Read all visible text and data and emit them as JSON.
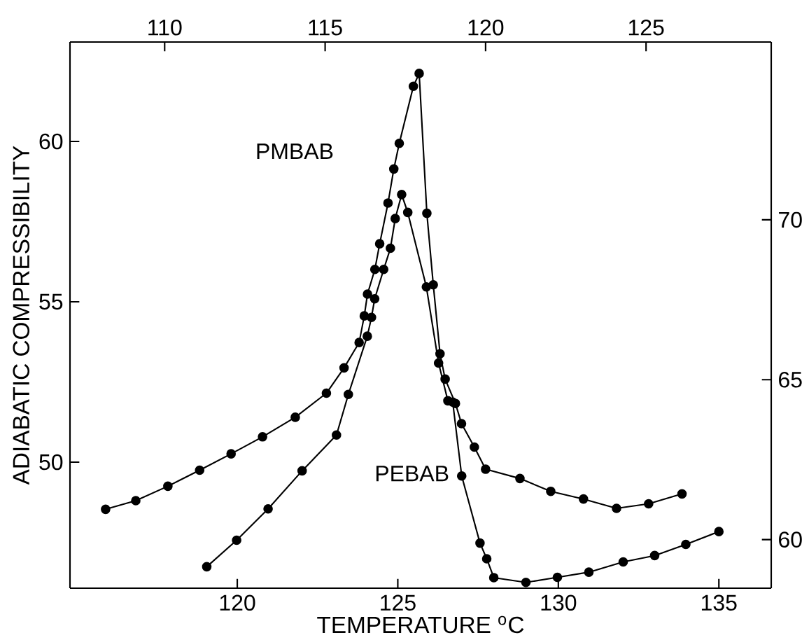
{
  "chart_data": {
    "type": "line",
    "xlabel": "TEMPERATURE $^{o}$C",
    "ylabel": "ADIABATIC COMPRESSIBILITY",
    "xlim": [
      114.79,
      136.63
    ],
    "xticks": [
      120,
      125,
      130,
      135
    ],
    "x2lim": [
      107.05,
      128.9
    ],
    "x2ticks": [
      110,
      115,
      120,
      125
    ],
    "ylim": [
      46.07,
      63.1
    ],
    "yticks": [
      50,
      55,
      60
    ],
    "y2lim": [
      58.48,
      75.56
    ],
    "y2ticks": [
      60,
      65,
      70
    ],
    "marker": "circle",
    "series": [
      {
        "name": "PMBAB",
        "axis": "x2",
        "color": "#000000",
        "x": [
          108.16,
          109.1,
          110.1,
          111.09,
          112.07,
          113.05,
          114.07,
          115.04,
          115.59,
          116.06,
          116.22,
          116.32,
          116.55,
          116.7,
          116.96,
          117.14,
          117.31,
          117.75,
          117.93,
          118.17,
          118.37,
          118.58,
          118.74,
          119.06,
          119.25,
          119.65,
          120.0,
          121.07,
          122.03,
          123.05,
          124.08,
          125.08,
          126.12
        ],
        "values": [
          48.53,
          48.8,
          49.25,
          49.75,
          50.26,
          50.79,
          51.4,
          52.15,
          52.94,
          53.73,
          54.56,
          55.24,
          56.01,
          56.81,
          58.08,
          59.14,
          59.94,
          61.72,
          62.12,
          57.76,
          55.53,
          53.38,
          52.59,
          51.83,
          51.2,
          50.47,
          49.78,
          49.49,
          49.09,
          48.85,
          48.56,
          48.7,
          49.01
        ]
      },
      {
        "name": "PEBAB",
        "axis": "y2",
        "color": "#000000",
        "x": [
          119.05,
          119.98,
          120.96,
          122.02,
          123.09,
          123.46,
          124.05,
          124.18,
          124.28,
          124.56,
          124.77,
          124.92,
          125.12,
          125.31,
          125.89,
          126.27,
          126.56,
          126.71,
          126.99,
          127.56,
          127.77,
          127.99,
          128.99,
          129.97,
          130.95,
          132.02,
          133.0,
          133.97,
          135.0
        ],
        "values": [
          59.15,
          59.98,
          60.96,
          62.15,
          63.27,
          64.54,
          66.36,
          66.95,
          67.53,
          68.45,
          69.11,
          70.04,
          70.79,
          70.23,
          67.9,
          65.52,
          64.34,
          64.3,
          61.99,
          59.89,
          59.4,
          58.81,
          58.66,
          58.82,
          58.98,
          59.3,
          59.5,
          59.85,
          60.25
        ]
      }
    ]
  }
}
